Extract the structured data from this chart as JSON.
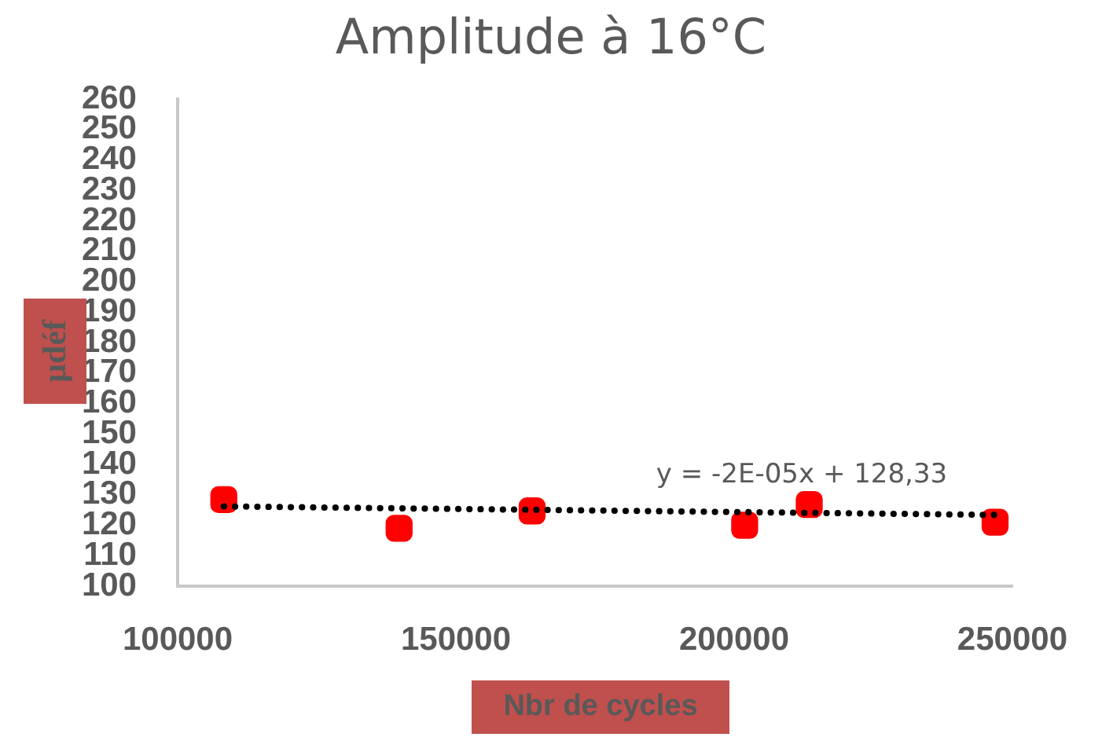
{
  "chart_data": {
    "type": "scatter",
    "title": "Amplitude à 16°C",
    "xlabel": "Nbr de cycles",
    "ylabel": "µdéf",
    "xlim": [
      100000,
      250000
    ],
    "xticks": [
      100000,
      150000,
      200000,
      250000
    ],
    "ylim": [
      100,
      260
    ],
    "yticks": [
      100,
      110,
      120,
      130,
      140,
      150,
      160,
      170,
      180,
      190,
      200,
      210,
      220,
      230,
      240,
      250,
      260
    ],
    "grid": false,
    "legend": false,
    "marker": "square",
    "series": [
      {
        "color": "#ff0000",
        "x": [
          108300,
          139800,
          163700,
          201900,
          213500,
          246900
        ],
        "values": [
          128.4,
          119,
          124.7,
          120,
          126.8,
          121
        ]
      },
      {
        "type": "line",
        "color": "#000000",
        "line_style": "dotted",
        "marker": "none",
        "x": [
          108300,
          246900
        ],
        "values": [
          126.2,
          123.4
        ]
      }
    ],
    "annotations": [
      "y = -2E-05x + 128,33"
    ]
  }
}
